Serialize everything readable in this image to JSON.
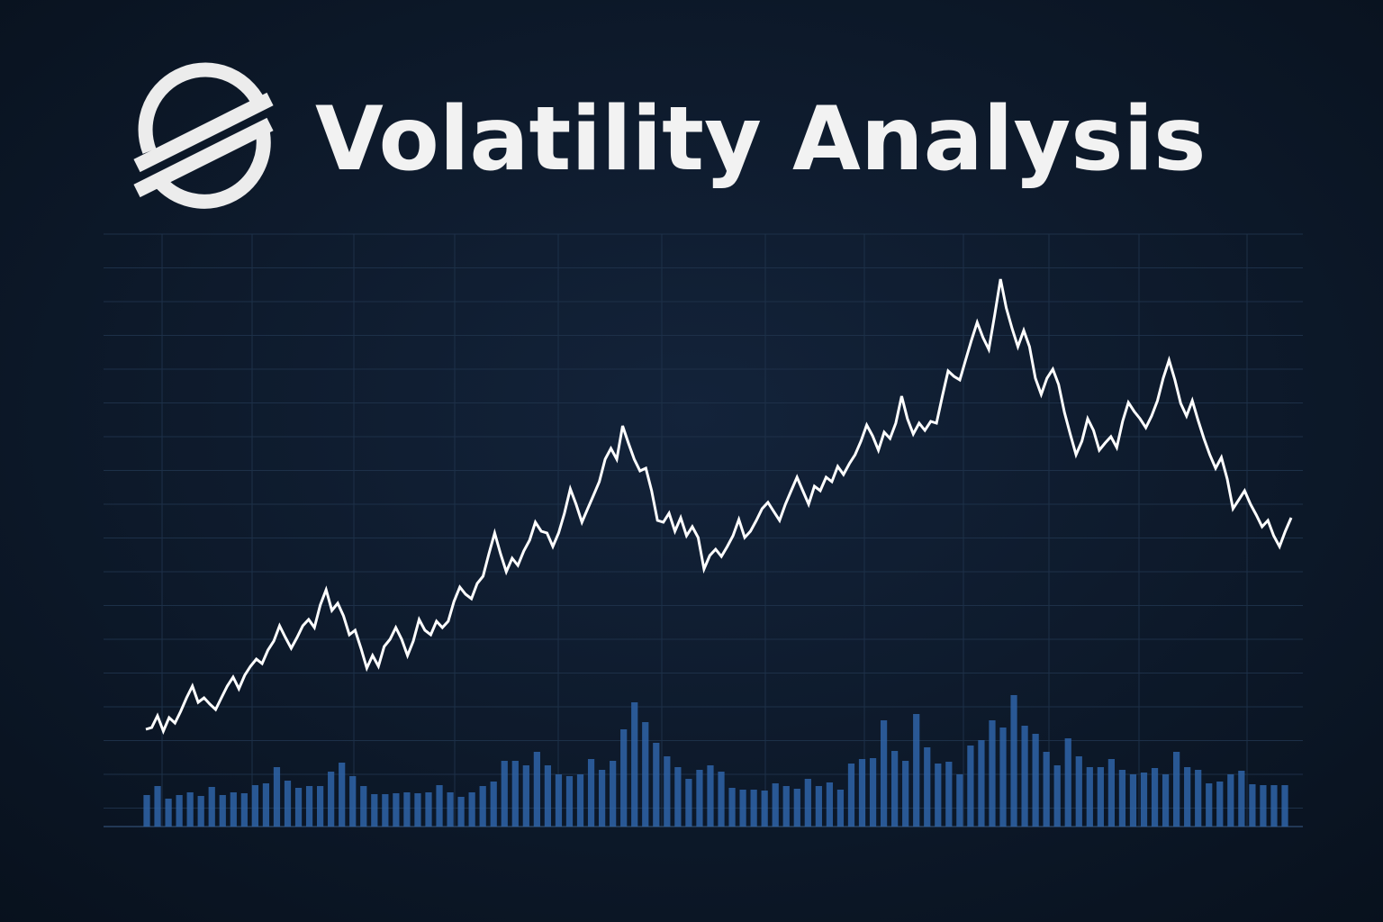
{
  "chart_data": [
    {
      "type": "line",
      "title": "Volatility Analysis",
      "color": "#ffffff",
      "ylim": [
        0,
        658
      ],
      "values": [
        108,
        110,
        123,
        106,
        121,
        115,
        128,
        143,
        156,
        138,
        143,
        136,
        130,
        143,
        156,
        166,
        153,
        168,
        178,
        186,
        181,
        196,
        206,
        223,
        210,
        198,
        210,
        223,
        230,
        221,
        246,
        263,
        240,
        248,
        234,
        213,
        218,
        198,
        176,
        190,
        178,
        200,
        208,
        221,
        208,
        190,
        206,
        230,
        218,
        213,
        228,
        221,
        228,
        250,
        266,
        258,
        253,
        270,
        278,
        303,
        326,
        303,
        283,
        298,
        290,
        306,
        318,
        338,
        328,
        326,
        311,
        326,
        348,
        375,
        358,
        338,
        353,
        368,
        383,
        408,
        420,
        408,
        445,
        426,
        408,
        395,
        398,
        373,
        340,
        338,
        348,
        328,
        343,
        323,
        333,
        321,
        286,
        301,
        308,
        300,
        311,
        323,
        341,
        321,
        328,
        340,
        353,
        360,
        350,
        340,
        358,
        373,
        388,
        373,
        358,
        378,
        373,
        388,
        383,
        400,
        391,
        403,
        413,
        428,
        446,
        434,
        418,
        438,
        431,
        448,
        478,
        453,
        436,
        448,
        440,
        450,
        448,
        478,
        506,
        500,
        496,
        518,
        540,
        560,
        543,
        530,
        568,
        608,
        576,
        553,
        533,
        551,
        533,
        498,
        480,
        498,
        508,
        491,
        460,
        436,
        413,
        428,
        453,
        440,
        418,
        426,
        433,
        421,
        450,
        471,
        461,
        453,
        443,
        456,
        473,
        498,
        518,
        496,
        470,
        456,
        473,
        451,
        431,
        413,
        398,
        410,
        386,
        353,
        363,
        373,
        358,
        346,
        333,
        340,
        323,
        311,
        328,
        343
      ]
    },
    {
      "type": "bar",
      "color": "#2f64a8",
      "ylim": [
        0,
        658
      ],
      "values": [
        35,
        45,
        31,
        35,
        38,
        34,
        44,
        35,
        38,
        37,
        46,
        48,
        66,
        51,
        43,
        45,
        45,
        61,
        71,
        56,
        45,
        36,
        36,
        37,
        38,
        37,
        38,
        46,
        38,
        33,
        38,
        45,
        50,
        73,
        73,
        68,
        83,
        68,
        58,
        56,
        58,
        75,
        63,
        73,
        108,
        138,
        116,
        93,
        78,
        66,
        53,
        63,
        68,
        61,
        43,
        41,
        41,
        40,
        48,
        45,
        42,
        53,
        45,
        49,
        41,
        70,
        75,
        76,
        118,
        84,
        73,
        125,
        88,
        70,
        72,
        58,
        90,
        96,
        118,
        110,
        146,
        112,
        103,
        83,
        68,
        98,
        78,
        66,
        66,
        75,
        63,
        58,
        60,
        65,
        58,
        83,
        66,
        63,
        48,
        50,
        58,
        62,
        47,
        46,
        46,
        46
      ]
    }
  ]
}
